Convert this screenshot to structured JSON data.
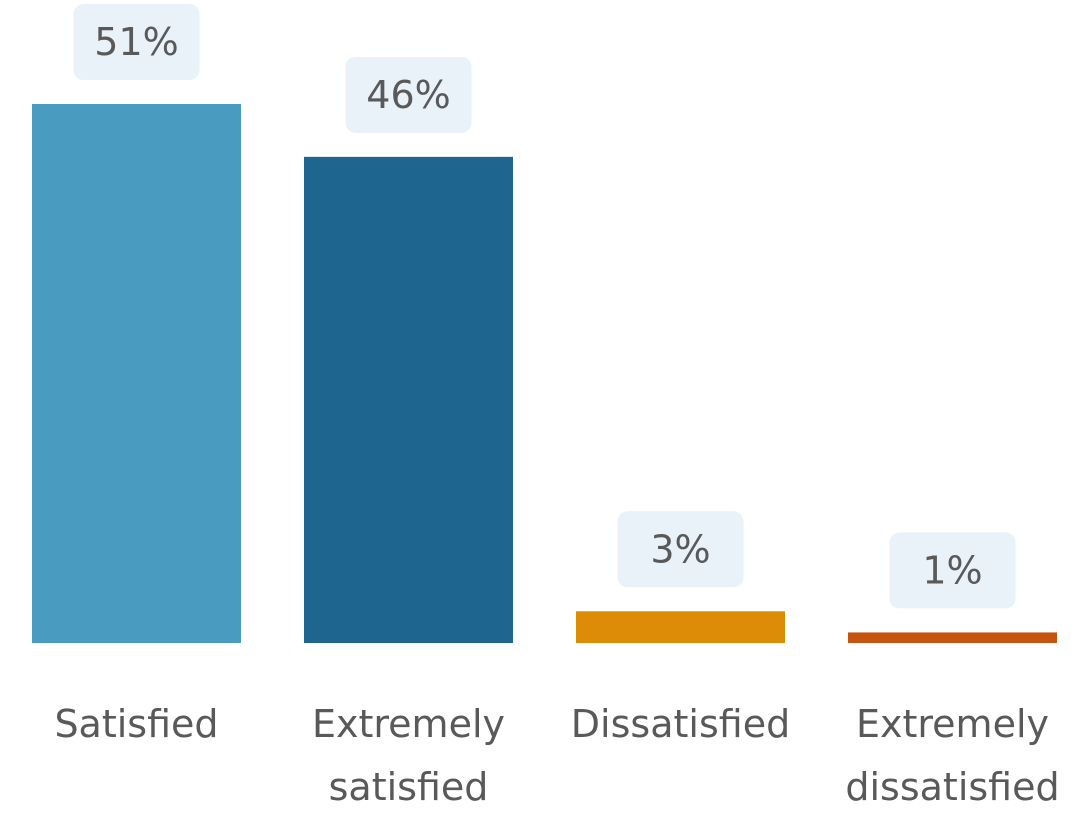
{
  "chart_data": {
    "type": "bar",
    "title": "",
    "xlabel": "",
    "ylabel": "",
    "ylim": [
      0,
      51
    ],
    "grid": false,
    "legend": "none",
    "categories": [
      [
        "Satisfied"
      ],
      [
        "Extremely",
        "satisfied"
      ],
      [
        "Dissatisfied"
      ],
      [
        "Extremely",
        "dissatisfied"
      ]
    ],
    "values": [
      51,
      46,
      3,
      1
    ],
    "data_labels": [
      "51%",
      "46%",
      "3%",
      "1%"
    ],
    "colors": [
      "#4a9bc0",
      "#1e6690",
      "#dd8c08",
      "#c65411"
    ],
    "label_box_color": "#e8f2f8"
  }
}
